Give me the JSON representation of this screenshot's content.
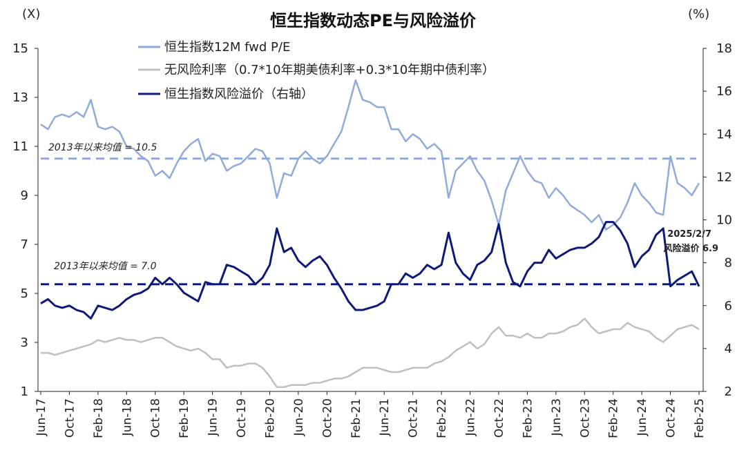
{
  "chart_data": {
    "type": "line",
    "title": "恒生指数动态PE与风险溢价",
    "left_unit": "(X)",
    "right_unit": "(%)",
    "y_left_ticks": [
      "15",
      "13",
      "11",
      "9",
      "7",
      "5",
      "3",
      "1"
    ],
    "y_right_ticks": [
      "18",
      "16",
      "14",
      "12",
      "10",
      "8",
      "6",
      "4",
      "2"
    ],
    "ylim_left": [
      1,
      15
    ],
    "ylim_right": [
      2,
      18
    ],
    "x_ticks": [
      "Jun-17",
      "Oct-17",
      "Feb-18",
      "Jun-18",
      "Oct-18",
      "Feb-19",
      "Jun-19",
      "Oct-19",
      "Feb-20",
      "Jun-20",
      "Oct-20",
      "Feb-21",
      "Jun-21",
      "Oct-21",
      "Feb-22",
      "Jun-22",
      "Oct-22",
      "Feb-23",
      "Jun-23",
      "Oct-23",
      "Feb-24",
      "Jun-24",
      "Oct-24",
      "Feb-25"
    ],
    "x_range": [
      "2017-06",
      "2025-02"
    ],
    "series": [
      {
        "name": "恒生指数12M fwd P/E",
        "axis": "left",
        "color": "#8faadc",
        "points": [
          [
            "2017-06",
            11.9
          ],
          [
            "2017-07",
            11.7
          ],
          [
            "2017-08",
            12.2
          ],
          [
            "2017-09",
            12.3
          ],
          [
            "2017-10",
            12.2
          ],
          [
            "2017-11",
            12.4
          ],
          [
            "2017-12",
            12.2
          ],
          [
            "2018-01",
            12.9
          ],
          [
            "2018-02",
            11.8
          ],
          [
            "2018-03",
            11.7
          ],
          [
            "2018-04",
            11.8
          ],
          [
            "2018-05",
            11.6
          ],
          [
            "2018-06",
            11.0
          ],
          [
            "2018-07",
            10.9
          ],
          [
            "2018-08",
            10.6
          ],
          [
            "2018-09",
            10.4
          ],
          [
            "2018-10",
            9.8
          ],
          [
            "2018-11",
            10.0
          ],
          [
            "2018-12",
            9.7
          ],
          [
            "2019-01",
            10.3
          ],
          [
            "2019-02",
            10.8
          ],
          [
            "2019-03",
            11.1
          ],
          [
            "2019-04",
            11.3
          ],
          [
            "2019-05",
            10.4
          ],
          [
            "2019-06",
            10.7
          ],
          [
            "2019-07",
            10.6
          ],
          [
            "2019-08",
            10.0
          ],
          [
            "2019-09",
            10.2
          ],
          [
            "2019-10",
            10.3
          ],
          [
            "2019-11",
            10.6
          ],
          [
            "2019-12",
            10.9
          ],
          [
            "2020-01",
            10.8
          ],
          [
            "2020-02",
            10.3
          ],
          [
            "2020-03",
            8.9
          ],
          [
            "2020-04",
            9.9
          ],
          [
            "2020-05",
            9.8
          ],
          [
            "2020-06",
            10.5
          ],
          [
            "2020-07",
            10.8
          ],
          [
            "2020-08",
            10.5
          ],
          [
            "2020-09",
            10.3
          ],
          [
            "2020-10",
            10.6
          ],
          [
            "2020-11",
            11.1
          ],
          [
            "2020-12",
            11.6
          ],
          [
            "2021-01",
            12.6
          ],
          [
            "2021-02",
            13.7
          ],
          [
            "2021-03",
            12.9
          ],
          [
            "2021-04",
            12.8
          ],
          [
            "2021-05",
            12.6
          ],
          [
            "2021-06",
            12.6
          ],
          [
            "2021-07",
            11.7
          ],
          [
            "2021-08",
            11.7
          ],
          [
            "2021-09",
            11.2
          ],
          [
            "2021-10",
            11.5
          ],
          [
            "2021-11",
            11.3
          ],
          [
            "2021-12",
            10.9
          ],
          [
            "2022-01",
            11.1
          ],
          [
            "2022-02",
            10.8
          ],
          [
            "2022-03",
            8.9
          ],
          [
            "2022-04",
            10.0
          ],
          [
            "2022-05",
            10.3
          ],
          [
            "2022-06",
            10.6
          ],
          [
            "2022-07",
            10.0
          ],
          [
            "2022-08",
            9.6
          ],
          [
            "2022-09",
            8.8
          ],
          [
            "2022-10",
            7.8
          ],
          [
            "2022-11",
            9.2
          ],
          [
            "2022-12",
            9.9
          ],
          [
            "2023-01",
            10.6
          ],
          [
            "2023-02",
            10.0
          ],
          [
            "2023-03",
            9.6
          ],
          [
            "2023-04",
            9.5
          ],
          [
            "2023-05",
            8.9
          ],
          [
            "2023-06",
            9.3
          ],
          [
            "2023-07",
            9.0
          ],
          [
            "2023-08",
            8.6
          ],
          [
            "2023-09",
            8.4
          ],
          [
            "2023-10",
            8.2
          ],
          [
            "2023-11",
            7.9
          ],
          [
            "2023-12",
            8.2
          ],
          [
            "2024-01",
            7.6
          ],
          [
            "2024-02",
            7.8
          ],
          [
            "2024-03",
            8.1
          ],
          [
            "2024-04",
            8.7
          ],
          [
            "2024-05",
            9.5
          ],
          [
            "2024-06",
            9.0
          ],
          [
            "2024-07",
            8.7
          ],
          [
            "2024-08",
            8.3
          ],
          [
            "2024-09",
            8.2
          ],
          [
            "2024-10",
            10.6
          ],
          [
            "2024-11",
            9.5
          ],
          [
            "2024-12",
            9.3
          ],
          [
            "2025-01",
            9.0
          ],
          [
            "2025-02",
            9.5
          ]
        ]
      },
      {
        "name": "无风险利率（0.7*10年期美债利率+0.3*10年期中债利率）",
        "axis": "right",
        "color": "#bfbfbf",
        "points": [
          [
            "2017-06",
            3.8
          ],
          [
            "2017-07",
            3.8
          ],
          [
            "2017-08",
            3.7
          ],
          [
            "2017-09",
            3.8
          ],
          [
            "2017-10",
            3.9
          ],
          [
            "2017-11",
            4.0
          ],
          [
            "2017-12",
            4.1
          ],
          [
            "2018-01",
            4.2
          ],
          [
            "2018-02",
            4.4
          ],
          [
            "2018-03",
            4.3
          ],
          [
            "2018-04",
            4.4
          ],
          [
            "2018-05",
            4.5
          ],
          [
            "2018-06",
            4.4
          ],
          [
            "2018-07",
            4.4
          ],
          [
            "2018-08",
            4.3
          ],
          [
            "2018-09",
            4.4
          ],
          [
            "2018-10",
            4.5
          ],
          [
            "2018-11",
            4.5
          ],
          [
            "2018-12",
            4.3
          ],
          [
            "2019-01",
            4.1
          ],
          [
            "2019-02",
            4.0
          ],
          [
            "2019-03",
            3.9
          ],
          [
            "2019-04",
            4.0
          ],
          [
            "2019-05",
            3.8
          ],
          [
            "2019-06",
            3.5
          ],
          [
            "2019-07",
            3.5
          ],
          [
            "2019-08",
            3.1
          ],
          [
            "2019-09",
            3.2
          ],
          [
            "2019-10",
            3.2
          ],
          [
            "2019-11",
            3.3
          ],
          [
            "2019-12",
            3.3
          ],
          [
            "2020-01",
            3.1
          ],
          [
            "2020-02",
            2.7
          ],
          [
            "2020-03",
            2.2
          ],
          [
            "2020-04",
            2.2
          ],
          [
            "2020-05",
            2.3
          ],
          [
            "2020-06",
            2.3
          ],
          [
            "2020-07",
            2.3
          ],
          [
            "2020-08",
            2.4
          ],
          [
            "2020-09",
            2.4
          ],
          [
            "2020-10",
            2.5
          ],
          [
            "2020-11",
            2.6
          ],
          [
            "2020-12",
            2.6
          ],
          [
            "2021-01",
            2.7
          ],
          [
            "2021-02",
            2.9
          ],
          [
            "2021-03",
            3.1
          ],
          [
            "2021-04",
            3.1
          ],
          [
            "2021-05",
            3.1
          ],
          [
            "2021-06",
            3.0
          ],
          [
            "2021-07",
            2.9
          ],
          [
            "2021-08",
            2.9
          ],
          [
            "2021-09",
            3.0
          ],
          [
            "2021-10",
            3.1
          ],
          [
            "2021-11",
            3.1
          ],
          [
            "2021-12",
            3.1
          ],
          [
            "2022-01",
            3.3
          ],
          [
            "2022-02",
            3.4
          ],
          [
            "2022-03",
            3.6
          ],
          [
            "2022-04",
            3.9
          ],
          [
            "2022-05",
            4.1
          ],
          [
            "2022-06",
            4.3
          ],
          [
            "2022-07",
            4.0
          ],
          [
            "2022-08",
            4.2
          ],
          [
            "2022-09",
            4.7
          ],
          [
            "2022-10",
            5.0
          ],
          [
            "2022-11",
            4.6
          ],
          [
            "2022-12",
            4.6
          ],
          [
            "2023-01",
            4.5
          ],
          [
            "2023-02",
            4.7
          ],
          [
            "2023-03",
            4.5
          ],
          [
            "2023-04",
            4.5
          ],
          [
            "2023-05",
            4.7
          ],
          [
            "2023-06",
            4.7
          ],
          [
            "2023-07",
            4.8
          ],
          [
            "2023-08",
            5.0
          ],
          [
            "2023-09",
            5.1
          ],
          [
            "2023-10",
            5.4
          ],
          [
            "2023-11",
            5.0
          ],
          [
            "2023-12",
            4.7
          ],
          [
            "2024-01",
            4.8
          ],
          [
            "2024-02",
            4.9
          ],
          [
            "2024-03",
            4.9
          ],
          [
            "2024-04",
            5.2
          ],
          [
            "2024-05",
            5.0
          ],
          [
            "2024-06",
            4.9
          ],
          [
            "2024-07",
            4.8
          ],
          [
            "2024-08",
            4.5
          ],
          [
            "2024-09",
            4.3
          ],
          [
            "2024-10",
            4.6
          ],
          [
            "2024-11",
            4.9
          ],
          [
            "2024-12",
            5.0
          ],
          [
            "2025-01",
            5.1
          ],
          [
            "2025-02",
            4.9
          ]
        ]
      },
      {
        "name": "恒生指数风险溢价（右轴）",
        "axis": "right",
        "color": "#0d1a78",
        "points": [
          [
            "2017-06",
            6.1
          ],
          [
            "2017-07",
            6.3
          ],
          [
            "2017-08",
            6.0
          ],
          [
            "2017-09",
            5.9
          ],
          [
            "2017-10",
            6.0
          ],
          [
            "2017-11",
            5.8
          ],
          [
            "2017-12",
            5.7
          ],
          [
            "2018-01",
            5.4
          ],
          [
            "2018-02",
            6.0
          ],
          [
            "2018-03",
            5.9
          ],
          [
            "2018-04",
            5.8
          ],
          [
            "2018-05",
            6.0
          ],
          [
            "2018-06",
            6.3
          ],
          [
            "2018-07",
            6.5
          ],
          [
            "2018-08",
            6.6
          ],
          [
            "2018-09",
            6.8
          ],
          [
            "2018-10",
            7.3
          ],
          [
            "2018-11",
            7.0
          ],
          [
            "2018-12",
            7.3
          ],
          [
            "2019-01",
            7.0
          ],
          [
            "2019-02",
            6.6
          ],
          [
            "2019-03",
            6.4
          ],
          [
            "2019-04",
            6.2
          ],
          [
            "2019-05",
            7.1
          ],
          [
            "2019-06",
            7.0
          ],
          [
            "2019-07",
            7.0
          ],
          [
            "2019-08",
            7.9
          ],
          [
            "2019-09",
            7.8
          ],
          [
            "2019-10",
            7.6
          ],
          [
            "2019-11",
            7.4
          ],
          [
            "2019-12",
            7.0
          ],
          [
            "2020-01",
            7.3
          ],
          [
            "2020-02",
            7.9
          ],
          [
            "2020-03",
            9.6
          ],
          [
            "2020-04",
            8.5
          ],
          [
            "2020-05",
            8.7
          ],
          [
            "2020-06",
            8.1
          ],
          [
            "2020-07",
            7.8
          ],
          [
            "2020-08",
            8.1
          ],
          [
            "2020-09",
            8.3
          ],
          [
            "2020-10",
            7.9
          ],
          [
            "2020-11",
            7.3
          ],
          [
            "2020-12",
            6.8
          ],
          [
            "2021-01",
            6.2
          ],
          [
            "2021-02",
            5.8
          ],
          [
            "2021-03",
            5.8
          ],
          [
            "2021-04",
            5.9
          ],
          [
            "2021-05",
            6.0
          ],
          [
            "2021-06",
            6.2
          ],
          [
            "2021-07",
            7.0
          ],
          [
            "2021-08",
            7.0
          ],
          [
            "2021-09",
            7.5
          ],
          [
            "2021-10",
            7.3
          ],
          [
            "2021-11",
            7.5
          ],
          [
            "2021-12",
            7.9
          ],
          [
            "2022-01",
            7.7
          ],
          [
            "2022-02",
            7.9
          ],
          [
            "2022-03",
            9.4
          ],
          [
            "2022-04",
            8.0
          ],
          [
            "2022-05",
            7.5
          ],
          [
            "2022-06",
            7.2
          ],
          [
            "2022-07",
            7.9
          ],
          [
            "2022-08",
            8.1
          ],
          [
            "2022-09",
            8.5
          ],
          [
            "2022-10",
            9.8
          ],
          [
            "2022-11",
            8.0
          ],
          [
            "2022-12",
            7.1
          ],
          [
            "2023-01",
            6.9
          ],
          [
            "2023-02",
            7.6
          ],
          [
            "2023-03",
            8.0
          ],
          [
            "2023-04",
            8.0
          ],
          [
            "2023-05",
            8.6
          ],
          [
            "2023-06",
            8.2
          ],
          [
            "2023-07",
            8.4
          ],
          [
            "2023-08",
            8.6
          ],
          [
            "2023-09",
            8.7
          ],
          [
            "2023-10",
            8.7
          ],
          [
            "2023-11",
            8.9
          ],
          [
            "2023-12",
            9.2
          ],
          [
            "2024-01",
            9.9
          ],
          [
            "2024-02",
            9.9
          ],
          [
            "2024-03",
            9.5
          ],
          [
            "2024-04",
            8.9
          ],
          [
            "2024-05",
            7.8
          ],
          [
            "2024-06",
            8.3
          ],
          [
            "2024-07",
            8.6
          ],
          [
            "2024-08",
            9.3
          ],
          [
            "2024-09",
            9.6
          ],
          [
            "2024-10",
            6.9
          ],
          [
            "2024-11",
            7.2
          ],
          [
            "2024-12",
            7.4
          ],
          [
            "2025-01",
            7.6
          ],
          [
            "2025-02",
            6.9
          ]
        ]
      }
    ],
    "reference_lines": [
      {
        "label": "2013年以来均值 = 10.5",
        "axis": "left",
        "value": 10.5,
        "color": "#8faadc"
      },
      {
        "label": "2013年以来均值 = 7.0",
        "axis": "right",
        "value": 7.0,
        "color": "#0d1a78"
      }
    ],
    "end_annotation": {
      "line1": "2025/2/7",
      "line2": "风险溢价 6.9"
    },
    "legend_position": "top-center",
    "grid": false
  }
}
